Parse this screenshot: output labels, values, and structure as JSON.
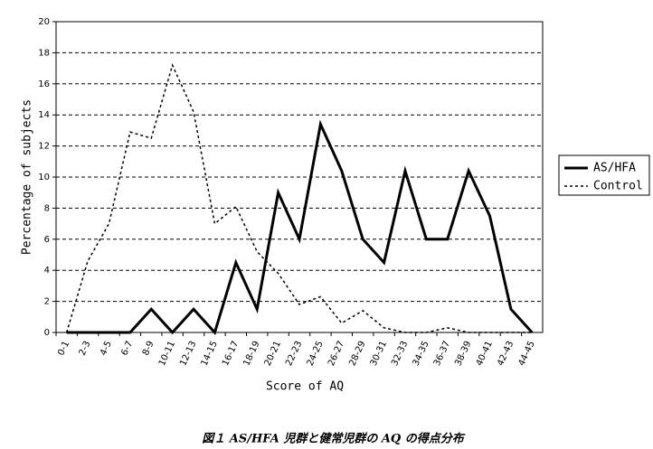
{
  "chart_data": {
    "type": "line",
    "x_label": "Score of AQ",
    "y_label": "Percentage of subjects",
    "caption": "図１ AS/HFA 児群と健常児群の AQ の得点分布",
    "categories": [
      "0-1",
      "2-3",
      "4-5",
      "6-7",
      "8-9",
      "10-11",
      "12-13",
      "14-15",
      "16-17",
      "18-19",
      "20-21",
      "22-23",
      "24-25",
      "26-27",
      "28-29",
      "30-31",
      "32-33",
      "34-35",
      "36-37",
      "38-39",
      "40-41",
      "42-43",
      "44-45"
    ],
    "series": [
      {
        "name": "AS/HFA",
        "color": "#000000",
        "dash": "solid",
        "values": [
          0,
          0,
          0,
          0,
          1.5,
          0,
          1.5,
          0,
          4.5,
          1.5,
          9,
          6,
          13.4,
          10.4,
          6,
          4.5,
          10.4,
          6,
          6,
          10.4,
          7.5,
          1.5,
          0
        ]
      },
      {
        "name": "Control",
        "color": "#000000",
        "dash": "dotted",
        "values": [
          0,
          4.6,
          7,
          12.9,
          12.5,
          17.2,
          14.2,
          7,
          8.1,
          5.2,
          3.8,
          1.8,
          2.3,
          0.6,
          1.4,
          0.3,
          0,
          0,
          0.3,
          0,
          0,
          0,
          0
        ]
      }
    ],
    "ylim": [
      0,
      20
    ],
    "yticks": [
      0,
      2,
      4,
      6,
      8,
      10,
      12,
      14,
      16,
      18,
      20
    ],
    "grid": true,
    "legend": "right"
  }
}
